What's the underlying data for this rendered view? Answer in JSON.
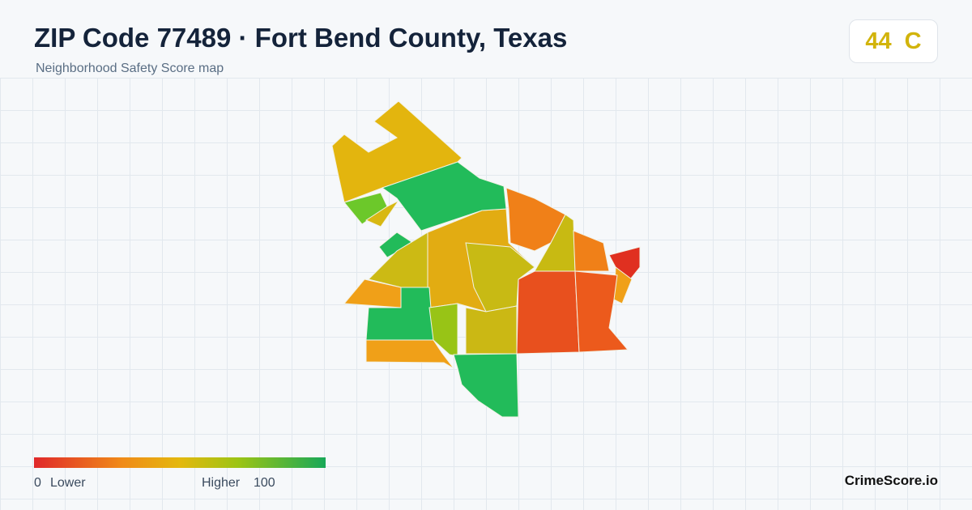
{
  "header": {
    "title": "ZIP Code 77489 · Fort Bend County, Texas",
    "subtitle": "Neighborhood Safety Score map"
  },
  "score": {
    "value": "44",
    "grade": "C"
  },
  "legend": {
    "min": "0",
    "min_label": "Lower",
    "max_label": "Higher",
    "max": "100"
  },
  "footer": {
    "brand": "CrimeScore.io"
  }
}
